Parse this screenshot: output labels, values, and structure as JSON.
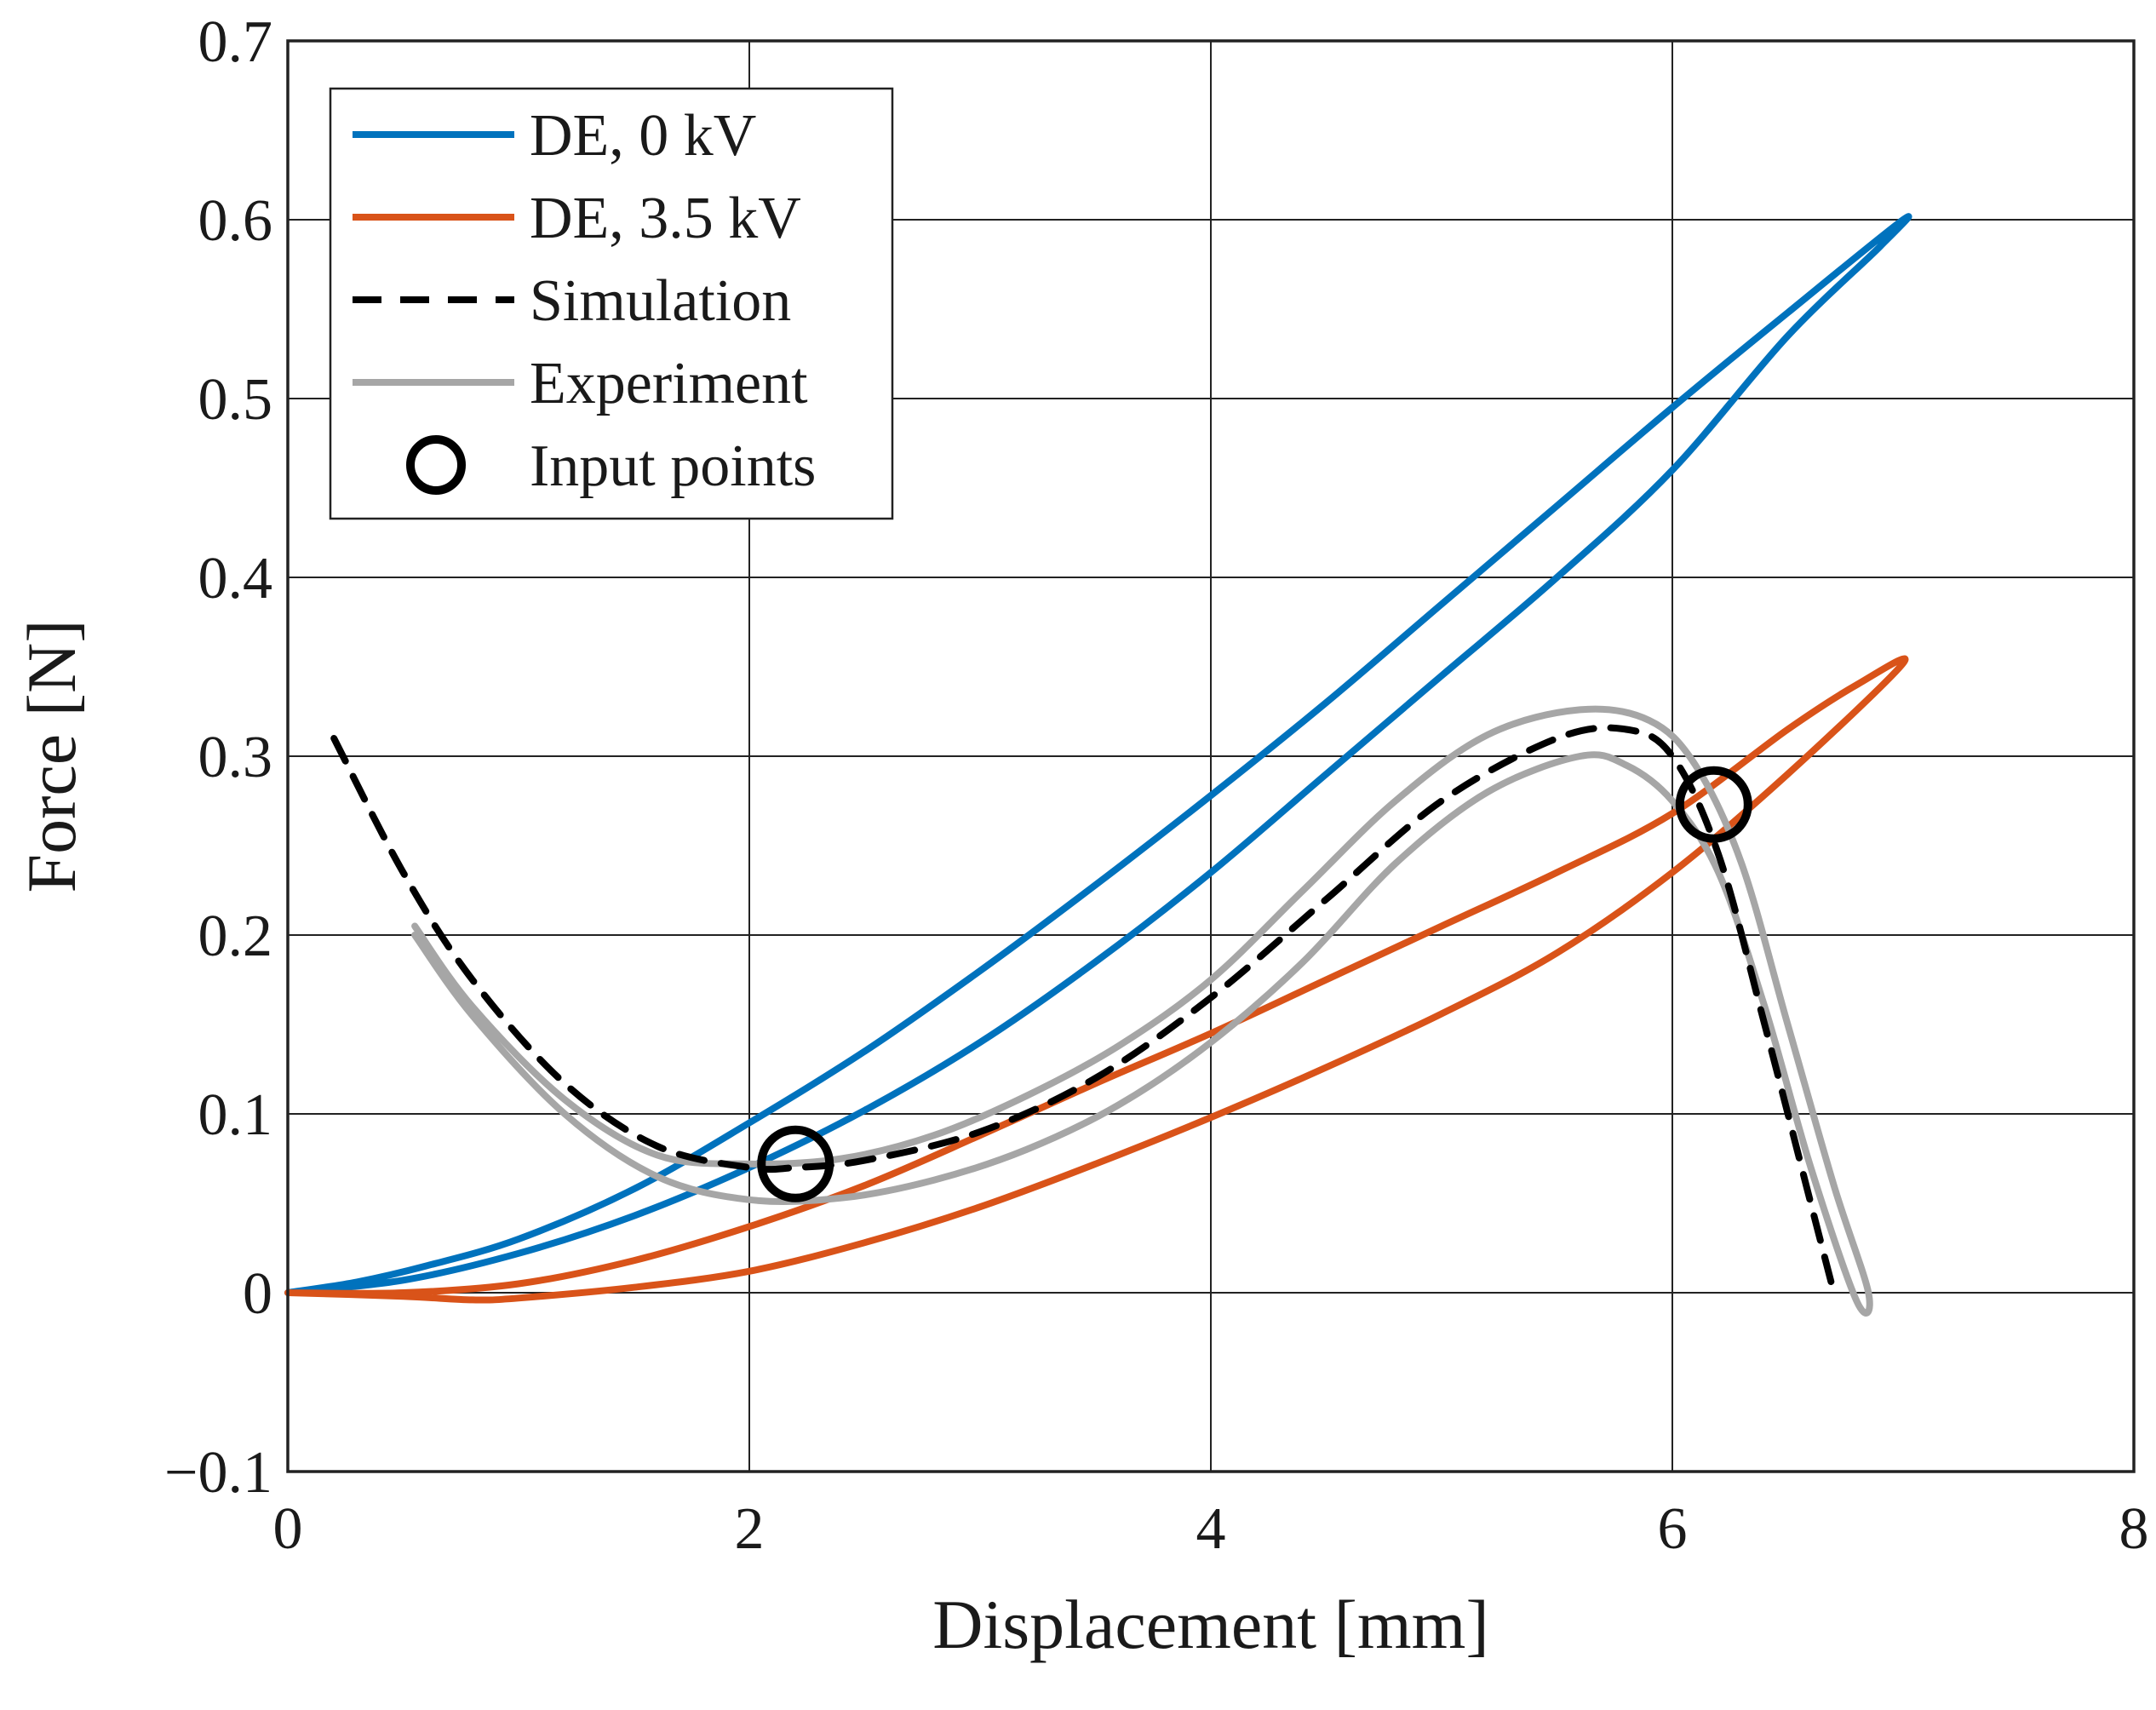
{
  "chart_data": {
    "type": "line",
    "title": "",
    "xlabel": "Displacement [mm]",
    "ylabel": "Force [N]",
    "xlim": [
      0,
      8
    ],
    "ylim": [
      -0.1,
      0.7
    ],
    "grid": true,
    "legend_position": "top-left",
    "x_ticks": [
      0,
      2,
      4,
      6,
      8
    ],
    "x_tick_labels": [
      "0",
      "2",
      "4",
      "6",
      "8"
    ],
    "y_ticks": [
      -0.1,
      0,
      0.1,
      0.2,
      0.3,
      0.4,
      0.5,
      0.6,
      0.7
    ],
    "y_tick_labels": [
      "−0.1",
      "0",
      "0.1",
      "0.2",
      "0.3",
      "0.4",
      "0.5",
      "0.6",
      "0.7"
    ],
    "series": [
      {
        "name": "DE, 0 kV",
        "color": "#0072BD",
        "style": "solid",
        "x": [
          0.0,
          0.3,
          0.6,
          1.0,
          1.5,
          2.0,
          2.5,
          3.0,
          3.5,
          4.0,
          4.5,
          5.0,
          5.5,
          6.0,
          6.5,
          7.0,
          6.9,
          6.5,
          6.0,
          5.5,
          5.0,
          4.5,
          4.0,
          3.5,
          3.0,
          2.5,
          2.0,
          1.5,
          1.0,
          0.5,
          0.0
        ],
        "y": [
          0.0,
          0.006,
          0.015,
          0.03,
          0.058,
          0.095,
          0.135,
          0.18,
          0.228,
          0.278,
          0.33,
          0.385,
          0.44,
          0.495,
          0.548,
          0.6,
          0.585,
          0.535,
          0.46,
          0.4,
          0.345,
          0.29,
          0.235,
          0.185,
          0.14,
          0.102,
          0.07,
          0.043,
          0.022,
          0.007,
          0.0
        ]
      },
      {
        "name": "DE, 3.5 kV",
        "color": "#D95319",
        "style": "solid",
        "x": [
          0.0,
          0.5,
          0.8,
          1.0,
          1.5,
          2.0,
          2.5,
          3.0,
          3.5,
          4.0,
          4.5,
          5.0,
          5.5,
          6.0,
          6.5,
          7.0,
          6.8,
          6.5,
          6.0,
          5.5,
          5.0,
          4.5,
          4.0,
          3.5,
          3.0,
          2.5,
          2.0,
          1.5,
          1.0,
          0.5,
          0.0
        ],
        "y": [
          0.0,
          -0.002,
          -0.004,
          -0.003,
          0.003,
          0.012,
          0.028,
          0.048,
          0.072,
          0.098,
          0.126,
          0.156,
          0.19,
          0.235,
          0.29,
          0.352,
          0.34,
          0.315,
          0.268,
          0.235,
          0.205,
          0.175,
          0.145,
          0.117,
          0.088,
          0.06,
          0.037,
          0.018,
          0.005,
          0.0,
          0.0
        ]
      },
      {
        "name": "Simulation",
        "color": "#000000",
        "style": "dashed",
        "x": [
          0.2,
          0.5,
          0.8,
          1.2,
          1.6,
          2.0,
          2.2,
          2.5,
          3.0,
          3.5,
          4.0,
          4.5,
          5.0,
          5.5,
          5.8,
          6.0,
          6.2,
          6.4,
          6.6,
          6.7
        ],
        "y": [
          0.31,
          0.235,
          0.175,
          0.117,
          0.082,
          0.07,
          0.07,
          0.074,
          0.09,
          0.12,
          0.165,
          0.22,
          0.275,
          0.31,
          0.315,
          0.3,
          0.245,
          0.15,
          0.05,
          0.0
        ]
      },
      {
        "name": "Experiment",
        "color": "#A6A6A6",
        "style": "solid",
        "x": [
          0.55,
          0.8,
          1.2,
          1.6,
          2.0,
          2.4,
          2.8,
          3.2,
          3.6,
          4.0,
          4.4,
          4.8,
          5.2,
          5.6,
          5.9,
          6.1,
          6.3,
          6.5,
          6.7,
          6.85,
          6.8,
          6.6,
          6.4,
          6.2,
          6.0,
          5.8,
          5.6,
          5.2,
          4.8,
          4.4,
          4.0,
          3.6,
          3.2,
          2.8,
          2.4,
          2.0,
          1.6,
          1.2,
          0.8,
          0.55
        ],
        "y": [
          0.205,
          0.16,
          0.108,
          0.077,
          0.072,
          0.075,
          0.088,
          0.11,
          0.138,
          0.175,
          0.225,
          0.275,
          0.312,
          0.326,
          0.32,
          0.295,
          0.24,
          0.15,
          0.06,
          0.0,
          -0.005,
          0.07,
          0.16,
          0.235,
          0.275,
          0.295,
          0.3,
          0.28,
          0.24,
          0.185,
          0.14,
          0.105,
          0.08,
          0.063,
          0.053,
          0.052,
          0.065,
          0.1,
          0.155,
          0.2
        ]
      }
    ],
    "input_points": {
      "name": "Input points",
      "color": "#000000",
      "marker": "circle",
      "x": [
        2.2,
        6.18
      ],
      "y": [
        0.072,
        0.273
      ]
    },
    "legend": [
      {
        "label": "DE, 0 kV",
        "kind": "line",
        "color": "#0072BD"
      },
      {
        "label": "DE, 3.5 kV",
        "kind": "line",
        "color": "#D95319"
      },
      {
        "label": "Simulation",
        "kind": "dashed",
        "color": "#000000"
      },
      {
        "label": "Experiment",
        "kind": "line",
        "color": "#A6A6A6"
      },
      {
        "label": "Input points",
        "kind": "circle",
        "color": "#000000"
      }
    ]
  }
}
